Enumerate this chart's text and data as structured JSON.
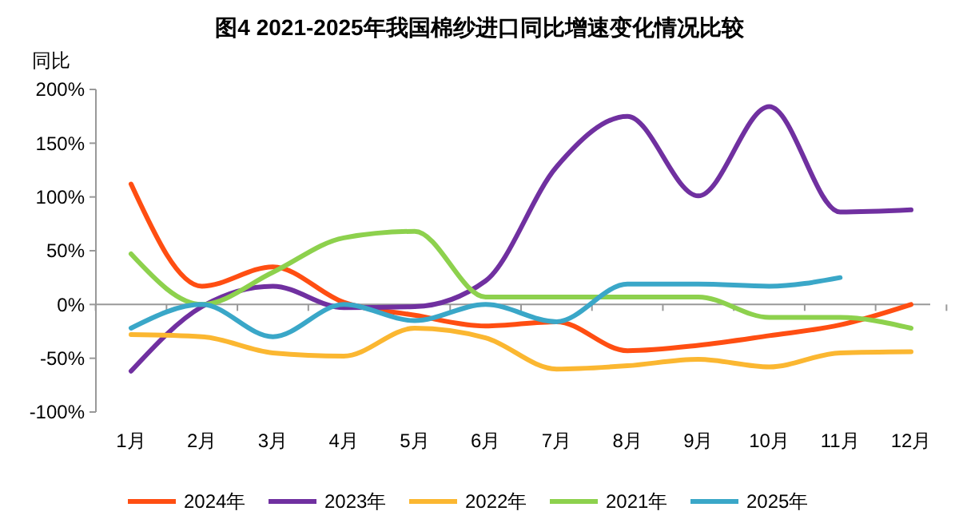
{
  "chart_data": {
    "type": "line",
    "title": "图4 2021-2025年我国棉纱进口同比增速变化情况比较",
    "ylabel": "同比",
    "categories": [
      "1月",
      "2月",
      "3月",
      "4月",
      "5月",
      "6月",
      "7月",
      "8月",
      "9月",
      "10月",
      "11月",
      "12月"
    ],
    "ylim": [
      -100,
      200
    ],
    "yticks": [
      {
        "value": -100,
        "label": "-100%"
      },
      {
        "value": -50,
        "label": "-50%"
      },
      {
        "value": 0,
        "label": "0%"
      },
      {
        "value": 50,
        "label": "50%"
      },
      {
        "value": 100,
        "label": "100%"
      },
      {
        "value": 150,
        "label": "150%"
      },
      {
        "value": 200,
        "label": "200%"
      }
    ],
    "legend": "bottom",
    "marker": "none",
    "line_style": "solid",
    "series": [
      {
        "name": "2024年",
        "color": "#ff4e12",
        "values": [
          112,
          17,
          35,
          2,
          -10,
          -20,
          -16,
          -43,
          -38,
          -29,
          -19,
          0
        ]
      },
      {
        "name": "2023年",
        "color": "#7030a0",
        "values": [
          -62,
          -2,
          17,
          -3,
          -2,
          22,
          128,
          175,
          101,
          184,
          86,
          88
        ]
      },
      {
        "name": "2022年",
        "color": "#fbb731",
        "values": [
          -28,
          -30,
          -45,
          -48,
          -22,
          -31,
          -60,
          -57,
          -51,
          -58,
          -45,
          -44
        ]
      },
      {
        "name": "2021年",
        "color": "#8dd14d",
        "values": [
          47,
          0,
          30,
          62,
          68,
          7,
          7,
          7,
          7,
          -12,
          -12,
          -22
        ]
      },
      {
        "name": "2025年",
        "color": "#3aa7c8",
        "values": [
          -22,
          0,
          -30,
          0,
          -15,
          0,
          -16,
          19,
          19,
          17,
          25,
          null
        ]
      }
    ]
  }
}
